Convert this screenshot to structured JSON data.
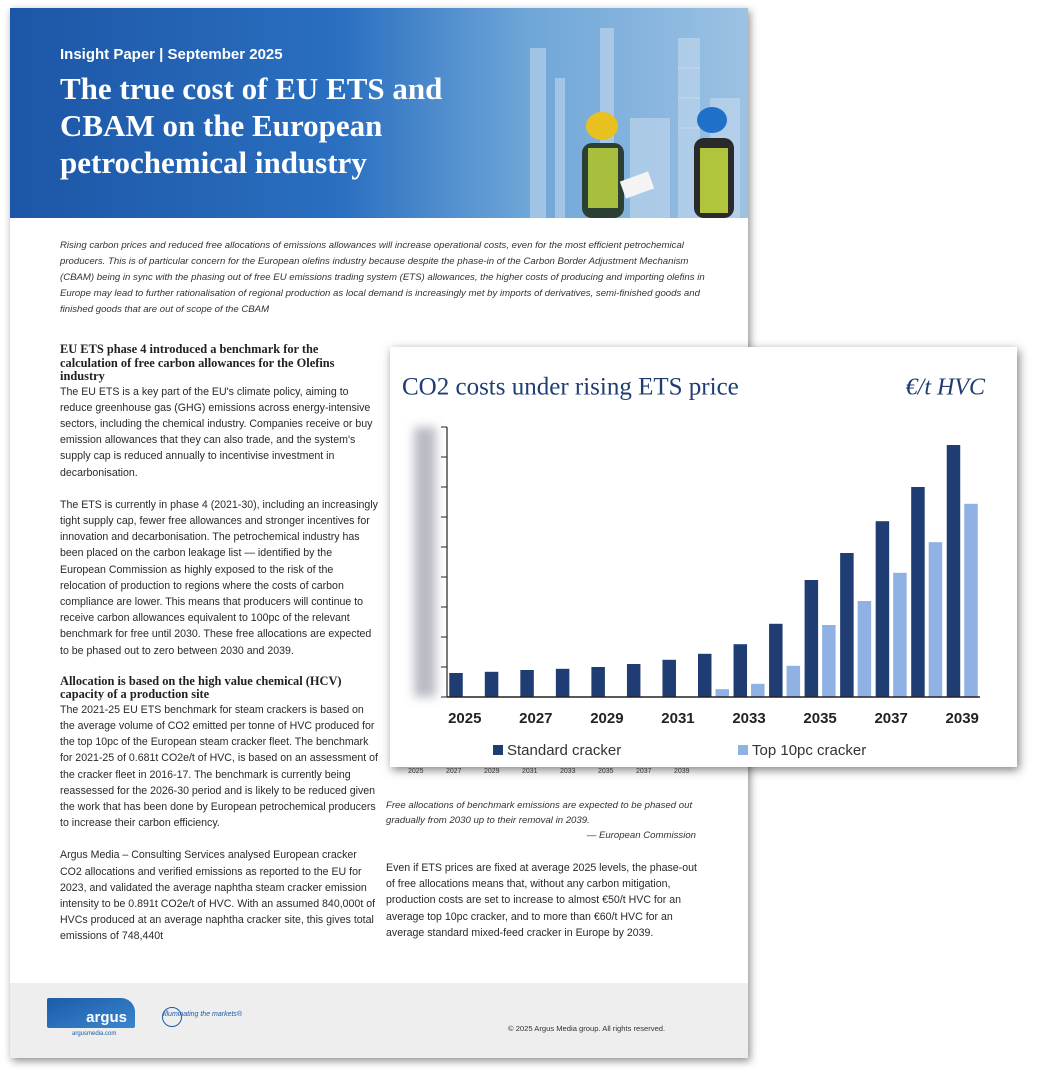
{
  "header": {
    "kicker": "Insight Paper | September 2025",
    "title": "The true cost of EU ETS and CBAM on the European petrochemical industry"
  },
  "intro": "Rising carbon prices and reduced free allocations of emissions allowances will increase operational costs, even for the most efficient petrochemical producers. This is of particular concern for the European olefins industry because despite the phase-in of the Carbon Border Adjustment Mechanism (CBAM) being in sync with the phasing out of free EU emissions trading system (ETS) allowances, the higher costs of producing and importing olefins in Europe may lead to further rationalisation of regional production as local demand is increasingly met by imports of derivatives, semi-finished goods and finished goods that are out of scope of the CBAM",
  "left_column": {
    "heading_1": "EU ETS phase 4 introduced a benchmark for the calculation of free carbon allowances for the Olefins industry",
    "paragraph_1": "The EU ETS is a key part of the EU's climate policy, aiming to reduce greenhouse gas (GHG) emissions across energy-intensive sectors, including the chemical industry. Companies receive or buy emission allowances that they can also trade, and the system's supply cap is reduced annually to incentivise investment in decarbonisation.",
    "paragraph_2": "The ETS is currently in phase 4 (2021-30), including an increasingly tight supply cap, fewer free allowances and stronger incentives for innovation and decarbonisation. The petrochemical industry has been placed on the carbon leakage list — identified by the European Commission as highly exposed to the risk of the relocation of production to regions where the costs of carbon compliance are lower. This means that producers will continue to receive carbon allowances equivalent to 100pc of the relevant benchmark for free until 2030. These free allocations are expected to be phased out to zero between 2030 and 2039.",
    "heading_2": "Allocation is based on the high value chemical (HCV) capacity of a production site",
    "paragraph_3": "The 2021-25 EU ETS benchmark for steam crackers is based on the average volume of CO2 emitted per tonne of HVC produced for the top 10pc of the European steam cracker fleet. The benchmark for 2021-25 of 0.681t CO2e/t of HVC, is based on an assessment of the cracker fleet in 2016-17. The benchmark is currently being reassessed for the 2026-30 period and is likely to be reduced given the work that has been done by European petrochemical producers to increase their carbon efficiency.",
    "paragraph_4": "Argus Media – Consulting Services analysed European cracker CO2 allocations and verified emissions as reported to the EU for 2023, and validated the average naphtha steam cracker emission intensity to be 0.891t CO2e/t of HVC. With an assumed 840,000t of HVCs produced at an average naphtha cracker site, this gives total emissions of 748,440t"
  },
  "background_chart_years": [
    "2025",
    "2027",
    "2029",
    "2031",
    "2033",
    "2035",
    "2037",
    "2039"
  ],
  "right_column": {
    "caption": "Free allocations of benchmark emissions are expected to be phased out gradually from 2030 up to their removal in 2039.",
    "caption_source": "— European Commission",
    "paragraph": "Even if ETS prices are fixed at average 2025 levels, the phase-out of free allocations means that, without any carbon mitigation, production costs are set to increase to almost €50/t HVC for an average top 10pc cracker, and to more than €60/t HVC for an average standard mixed-feed cracker in Europe by 2039."
  },
  "footer": {
    "logo": "argus",
    "logo_url": "argusmedia.com",
    "tagline": "Illuminating the markets®",
    "copyright": "© 2025 Argus Media group. All rights reserved."
  },
  "chart_data": {
    "type": "bar",
    "title": "CO2 costs under rising ETS price",
    "unit_label": "€/t HVC",
    "categories": [
      "2025",
      null,
      "2027",
      null,
      "2029",
      null,
      "2031",
      null,
      "2033",
      null,
      "2035",
      null,
      "2037",
      null,
      "2039"
    ],
    "series": [
      {
        "name": "Standard cracker",
        "color": "#1f3d73",
        "values": [
          40,
          42,
          45,
          47,
          50,
          55,
          62,
          72,
          88,
          122,
          195,
          240,
          293,
          350,
          420
        ]
      },
      {
        "name": "Top 10pc cracker",
        "color": "#8fb1e3",
        "values": [
          0,
          0,
          0,
          0,
          0,
          0,
          0,
          13,
          22,
          52,
          120,
          160,
          207,
          258,
          322
        ]
      }
    ],
    "ylim": [
      0,
      450
    ],
    "yticks": [
      0,
      50,
      100,
      150,
      200,
      250,
      300,
      350,
      400,
      450
    ]
  }
}
